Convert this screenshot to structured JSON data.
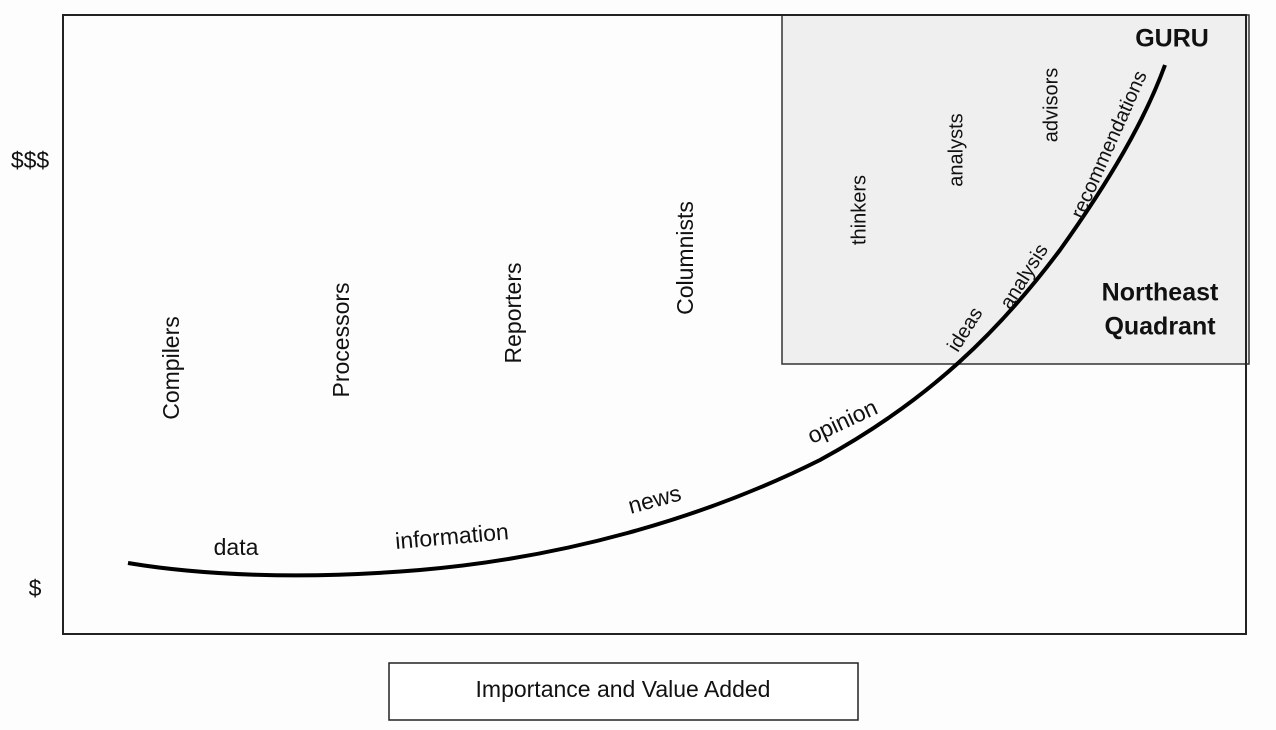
{
  "y_axis": {
    "high": "$$$",
    "low": "$"
  },
  "roles": [
    "Compilers",
    "Processors",
    "Reporters",
    "Columnists"
  ],
  "quadrant_roles": [
    "thinkers",
    "analysts",
    "advisors"
  ],
  "curve_labels": [
    "data",
    "information",
    "news",
    "opinion",
    "ideas",
    "analysis",
    "recommendations"
  ],
  "peak": "GURU",
  "quadrant": {
    "label_lines": [
      "Northeast",
      "Quadrant"
    ]
  },
  "x_axis_label": "Importance and Value Added"
}
